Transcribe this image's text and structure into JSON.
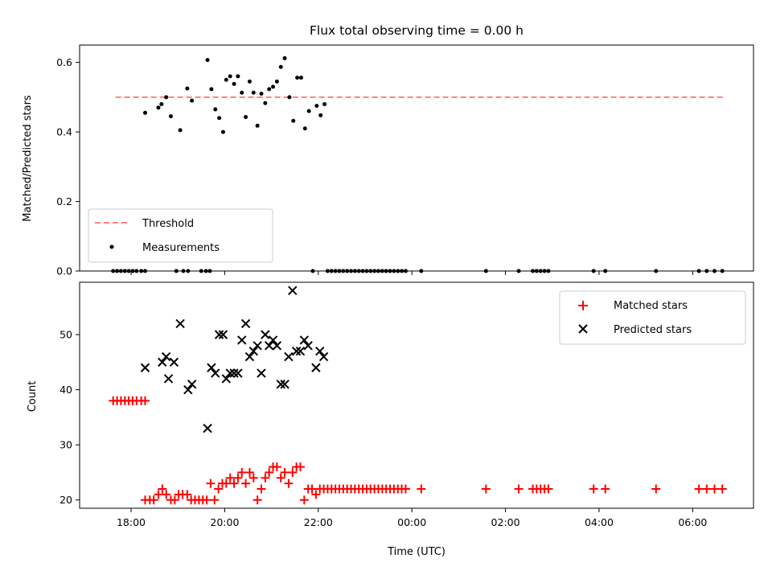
{
  "colors": {
    "threshold": "#ff7f7f",
    "measurements": "#000000",
    "matched": "#ff0000",
    "predicted": "#000000"
  },
  "chart_data": [
    {
      "type": "scatter",
      "title": "Flux total observing time = 0.00 h",
      "xlabel": "",
      "ylabel": "Matched/Predicted stars",
      "ylim": [
        0,
        0.65
      ],
      "yticks": [
        "0.0",
        "0.2",
        "0.4",
        "0.6"
      ],
      "xlim_hours_since_midnight": [
        -7.1,
        7.3
      ],
      "xticks": [
        "18:00",
        "20:00",
        "22:00",
        "00:00",
        "02:00",
        "04:00",
        "06:00"
      ],
      "legend": {
        "position": "lower-left",
        "entries": [
          "Threshold",
          "Measurements"
        ]
      },
      "threshold": {
        "name": "Threshold",
        "value": 0.5,
        "x_range": [
          "17:40",
          "06:40"
        ]
      },
      "series": [
        {
          "name": "Measurements",
          "points": [
            [
              "17:37",
              0
            ],
            [
              "17:42",
              0
            ],
            [
              "17:47",
              0
            ],
            [
              "17:52",
              0
            ],
            [
              "17:57",
              0
            ],
            [
              "18:02",
              0
            ],
            [
              "18:07",
              0
            ],
            [
              "18:13",
              0
            ],
            [
              "18:18",
              0
            ],
            [
              "18:18",
              0.455
            ],
            [
              "18:35",
              0.47
            ],
            [
              "18:39",
              0.48
            ],
            [
              "18:45",
              0.5
            ],
            [
              "18:51",
              0.445
            ],
            [
              "19:03",
              0.405
            ],
            [
              "19:12",
              0.525
            ],
            [
              "19:18",
              0.49
            ],
            [
              "18:58",
              0
            ],
            [
              "19:07",
              0
            ],
            [
              "19:13",
              0
            ],
            [
              "19:30",
              0
            ],
            [
              "19:36",
              0
            ],
            [
              "19:41",
              0
            ],
            [
              "19:38",
              0.607
            ],
            [
              "19:43",
              0.523
            ],
            [
              "19:48",
              0.465
            ],
            [
              "19:53",
              0.44
            ],
            [
              "19:58",
              0.4
            ],
            [
              "20:02",
              0.55
            ],
            [
              "20:07",
              0.56
            ],
            [
              "20:12",
              0.538
            ],
            [
              "20:17",
              0.56
            ],
            [
              "20:22",
              0.513
            ],
            [
              "20:27",
              0.443
            ],
            [
              "20:32",
              0.545
            ],
            [
              "20:37",
              0.513
            ],
            [
              "20:42",
              0.418
            ],
            [
              "20:47",
              0.51
            ],
            [
              "20:52",
              0.483
            ],
            [
              "20:57",
              0.523
            ],
            [
              "21:02",
              0.53
            ],
            [
              "21:07",
              0.545
            ],
            [
              "21:12",
              0.587
            ],
            [
              "21:17",
              0.612
            ],
            [
              "21:23",
              0.5
            ],
            [
              "21:28",
              0.432
            ],
            [
              "21:33",
              0.556
            ],
            [
              "21:38",
              0.556
            ],
            [
              "21:43",
              0.41
            ],
            [
              "21:48",
              0.46
            ],
            [
              "21:58",
              0.475
            ],
            [
              "22:03",
              0.448
            ],
            [
              "22:08",
              0.48
            ],
            [
              "21:53",
              0
            ],
            [
              "22:12",
              0
            ],
            [
              "22:17",
              0
            ],
            [
              "22:22",
              0
            ],
            [
              "22:27",
              0
            ],
            [
              "22:32",
              0
            ],
            [
              "22:37",
              0
            ],
            [
              "22:42",
              0
            ],
            [
              "22:47",
              0
            ],
            [
              "22:52",
              0
            ],
            [
              "22:57",
              0
            ],
            [
              "23:02",
              0
            ],
            [
              "23:07",
              0
            ],
            [
              "23:12",
              0
            ],
            [
              "23:17",
              0
            ],
            [
              "23:22",
              0
            ],
            [
              "23:27",
              0
            ],
            [
              "23:32",
              0
            ],
            [
              "23:37",
              0
            ],
            [
              "23:42",
              0
            ],
            [
              "23:47",
              0
            ],
            [
              "23:52",
              0
            ],
            [
              "00:12",
              0
            ],
            [
              "01:35",
              0
            ],
            [
              "02:17",
              0
            ],
            [
              "02:35",
              0
            ],
            [
              "02:40",
              0
            ],
            [
              "02:45",
              0
            ],
            [
              "02:50",
              0
            ],
            [
              "02:55",
              0
            ],
            [
              "03:53",
              0
            ],
            [
              "04:08",
              0
            ],
            [
              "05:13",
              0
            ],
            [
              "06:08",
              0
            ],
            [
              "06:18",
              0
            ],
            [
              "06:28",
              0
            ],
            [
              "06:38",
              0
            ]
          ]
        }
      ]
    },
    {
      "type": "scatter",
      "title": "",
      "xlabel": "Time (UTC)",
      "ylabel": "Count",
      "ylim": [
        18.5,
        59.5
      ],
      "yticks": [
        "20",
        "30",
        "40",
        "50"
      ],
      "xlim_hours_since_midnight": [
        -7.1,
        7.3
      ],
      "xticks": [
        "18:00",
        "20:00",
        "22:00",
        "00:00",
        "02:00",
        "04:00",
        "06:00"
      ],
      "legend": {
        "position": "top-right",
        "entries": [
          "Matched stars",
          "Predicted stars"
        ]
      },
      "series": [
        {
          "name": "Matched stars",
          "marker": "plus",
          "points": [
            [
              "17:37",
              38
            ],
            [
              "17:42",
              38
            ],
            [
              "17:47",
              38
            ],
            [
              "17:52",
              38
            ],
            [
              "17:57",
              38
            ],
            [
              "18:02",
              38
            ],
            [
              "18:07",
              38
            ],
            [
              "18:13",
              38
            ],
            [
              "18:18",
              38
            ],
            [
              "18:18",
              20
            ],
            [
              "18:24",
              20
            ],
            [
              "18:29",
              20
            ],
            [
              "18:35",
              21
            ],
            [
              "18:40",
              22
            ],
            [
              "18:45",
              21
            ],
            [
              "18:51",
              20
            ],
            [
              "18:56",
              20
            ],
            [
              "19:01",
              21
            ],
            [
              "19:06",
              21
            ],
            [
              "19:12",
              21
            ],
            [
              "19:17",
              20
            ],
            [
              "19:22",
              20
            ],
            [
              "19:27",
              20
            ],
            [
              "19:32",
              20
            ],
            [
              "19:37",
              20
            ],
            [
              "19:42",
              23
            ],
            [
              "19:47",
              20
            ],
            [
              "19:52",
              22
            ],
            [
              "19:57",
              23
            ],
            [
              "20:02",
              23
            ],
            [
              "20:07",
              24
            ],
            [
              "20:12",
              23
            ],
            [
              "20:17",
              24
            ],
            [
              "20:22",
              25
            ],
            [
              "20:27",
              23
            ],
            [
              "20:32",
              25
            ],
            [
              "20:37",
              24
            ],
            [
              "20:42",
              20
            ],
            [
              "20:47",
              22
            ],
            [
              "20:52",
              24
            ],
            [
              "20:57",
              25
            ],
            [
              "21:02",
              26
            ],
            [
              "21:07",
              26
            ],
            [
              "21:12",
              24
            ],
            [
              "21:17",
              25
            ],
            [
              "21:22",
              23
            ],
            [
              "21:27",
              25
            ],
            [
              "21:32",
              26
            ],
            [
              "21:37",
              26
            ],
            [
              "21:42",
              20
            ],
            [
              "21:47",
              22
            ],
            [
              "21:52",
              22
            ],
            [
              "21:57",
              21
            ],
            [
              "22:02",
              22
            ],
            [
              "22:07",
              22
            ],
            [
              "22:12",
              22
            ],
            [
              "22:17",
              22
            ],
            [
              "22:22",
              22
            ],
            [
              "22:27",
              22
            ],
            [
              "22:32",
              22
            ],
            [
              "22:37",
              22
            ],
            [
              "22:42",
              22
            ],
            [
              "22:47",
              22
            ],
            [
              "22:52",
              22
            ],
            [
              "22:57",
              22
            ],
            [
              "23:02",
              22
            ],
            [
              "23:07",
              22
            ],
            [
              "23:12",
              22
            ],
            [
              "23:17",
              22
            ],
            [
              "23:22",
              22
            ],
            [
              "23:27",
              22
            ],
            [
              "23:32",
              22
            ],
            [
              "23:37",
              22
            ],
            [
              "23:42",
              22
            ],
            [
              "23:47",
              22
            ],
            [
              "23:52",
              22
            ],
            [
              "00:12",
              22
            ],
            [
              "01:35",
              22
            ],
            [
              "02:17",
              22
            ],
            [
              "02:35",
              22
            ],
            [
              "02:40",
              22
            ],
            [
              "02:45",
              22
            ],
            [
              "02:50",
              22
            ],
            [
              "02:55",
              22
            ],
            [
              "03:53",
              22
            ],
            [
              "04:08",
              22
            ],
            [
              "05:13",
              22
            ],
            [
              "06:08",
              22
            ],
            [
              "06:18",
              22
            ],
            [
              "06:28",
              22
            ],
            [
              "06:38",
              22
            ]
          ]
        },
        {
          "name": "Predicted stars",
          "marker": "x",
          "points": [
            [
              "18:18",
              44
            ],
            [
              "18:40",
              45
            ],
            [
              "18:45",
              46
            ],
            [
              "18:48",
              42
            ],
            [
              "18:55",
              45
            ],
            [
              "19:03",
              52
            ],
            [
              "19:13",
              40
            ],
            [
              "19:18",
              41
            ],
            [
              "19:38",
              33
            ],
            [
              "19:43",
              44
            ],
            [
              "19:48",
              43
            ],
            [
              "19:53",
              50
            ],
            [
              "19:58",
              50
            ],
            [
              "20:02",
              42
            ],
            [
              "20:07",
              43
            ],
            [
              "20:12",
              43
            ],
            [
              "20:17",
              43
            ],
            [
              "20:22",
              49
            ],
            [
              "20:27",
              52
            ],
            [
              "20:32",
              46
            ],
            [
              "20:37",
              47
            ],
            [
              "20:42",
              48
            ],
            [
              "20:47",
              43
            ],
            [
              "20:52",
              50
            ],
            [
              "20:57",
              48
            ],
            [
              "21:02",
              49
            ],
            [
              "21:07",
              48
            ],
            [
              "21:12",
              41
            ],
            [
              "21:17",
              41
            ],
            [
              "21:22",
              46
            ],
            [
              "21:27",
              58
            ],
            [
              "21:32",
              47
            ],
            [
              "21:37",
              47
            ],
            [
              "21:42",
              49
            ],
            [
              "21:47",
              48
            ],
            [
              "21:57",
              44
            ],
            [
              "22:02",
              47
            ],
            [
              "22:07",
              46
            ]
          ]
        }
      ]
    }
  ]
}
